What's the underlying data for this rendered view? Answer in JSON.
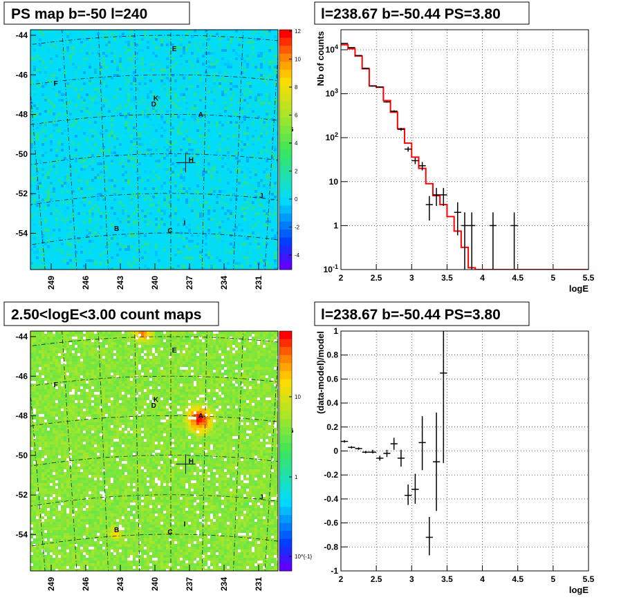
{
  "titles": {
    "map_top": "PS map b=-50 l=240",
    "spectrum": "l=238.67 b=-50.44 PS=3.80",
    "map_bottom": "2.50<logE<3.00 count maps",
    "residual": "l=238.67 b=-50.44 PS=3.80"
  },
  "colors": {
    "model_line": "#ff0000",
    "data_points": "#000000",
    "grid": "#000000"
  },
  "chart_data": [
    {
      "type": "heatmap",
      "title": "PS map b=-50 l=240",
      "x_ticks": [
        "249",
        "246",
        "243",
        "240",
        "237",
        "234",
        "231"
      ],
      "y_ticks": [
        "-44",
        "-46",
        "-48",
        "-50",
        "-52",
        "-54"
      ],
      "colorbar_ticks": [
        "12",
        "10",
        "8",
        "6",
        "4",
        "2",
        "0",
        "-2",
        "-4"
      ],
      "colorbar_range": [
        -5,
        12
      ],
      "markers": [
        {
          "label": "E",
          "l": 239.9,
          "b": -44.8
        },
        {
          "label": "F",
          "l": 250.0,
          "b": -46.2
        },
        {
          "label": "K",
          "l": 241.5,
          "b": -47.3
        },
        {
          "label": "D",
          "l": 241.7,
          "b": -47.6
        },
        {
          "label": "A",
          "l": 237.6,
          "b": -48.1
        },
        {
          "label": "G",
          "l": 229.7,
          "b": -48.5
        },
        {
          "label": "H",
          "l": 238.4,
          "b": -50.4
        },
        {
          "label": "J",
          "l": 231.9,
          "b": -52.0
        },
        {
          "label": "I",
          "l": 238.8,
          "b": -53.6
        },
        {
          "label": "B",
          "l": 245.3,
          "b": -53.8
        },
        {
          "label": "C",
          "l": 240.3,
          "b": -54.0
        }
      ],
      "crosshair": {
        "l": 238.67,
        "b": -50.44
      }
    },
    {
      "type": "line",
      "title": "l=238.67 b=-50.44 PS=3.80",
      "xlabel": "logE",
      "ylabel": "Nb of counts",
      "xlim": [
        2,
        5.5
      ],
      "ylim": [
        0.1,
        30000
      ],
      "yscale": "log",
      "grid": true,
      "x_ticks": [
        "2",
        "2.5",
        "3",
        "3.5",
        "4",
        "4.5",
        "5",
        "5.5"
      ],
      "y_ticks": [
        "10^{-1}",
        "1",
        "10",
        "10^{2}",
        "10^{3}",
        "10^{4}"
      ],
      "model_bins": {
        "edges": [
          2.0,
          2.1,
          2.2,
          2.3,
          2.4,
          2.5,
          2.6,
          2.7,
          2.8,
          2.9,
          3.0,
          3.1,
          3.2,
          3.3,
          3.4,
          3.5,
          3.6,
          3.7,
          3.8,
          3.9,
          4.0,
          4.1,
          4.2,
          4.3,
          4.4,
          4.5,
          4.6,
          4.7,
          4.8,
          4.9,
          5.0,
          5.1,
          5.2,
          5.3,
          5.4,
          5.5
        ],
        "values": [
          13000,
          10500,
          7200,
          3700,
          1500,
          1400,
          700,
          380,
          160,
          75,
          36,
          20,
          9,
          4.8,
          3,
          1.6,
          0.75,
          0.32,
          0.11,
          0.1,
          0.1,
          0.1,
          0.1,
          0.1,
          0.1,
          0.1,
          0.1,
          0.1,
          0.1,
          0.1,
          0.1,
          0.1,
          0.1,
          0.1,
          0.1
        ]
      },
      "data_points": [
        {
          "x": 2.05,
          "y": 14000,
          "ylo": 13900,
          "yhi": 14100
        },
        {
          "x": 2.15,
          "y": 11200,
          "ylo": 11100,
          "yhi": 11300
        },
        {
          "x": 2.25,
          "y": 7400,
          "ylo": 7300,
          "yhi": 7500
        },
        {
          "x": 2.35,
          "y": 3800,
          "ylo": 3740,
          "yhi": 3860
        },
        {
          "x": 2.45,
          "y": 1500,
          "ylo": 1460,
          "yhi": 1540
        },
        {
          "x": 2.55,
          "y": 1420,
          "ylo": 1380,
          "yhi": 1460
        },
        {
          "x": 2.65,
          "y": 650,
          "ylo": 625,
          "yhi": 675
        },
        {
          "x": 2.75,
          "y": 400,
          "ylo": 380,
          "yhi": 420
        },
        {
          "x": 2.85,
          "y": 155,
          "ylo": 143,
          "yhi": 167
        },
        {
          "x": 2.95,
          "y": 55,
          "ylo": 48,
          "yhi": 62
        },
        {
          "x": 3.05,
          "y": 30,
          "ylo": 25,
          "yhi": 35
        },
        {
          "x": 3.15,
          "y": 23,
          "ylo": 18,
          "yhi": 28
        },
        {
          "x": 3.25,
          "y": 3,
          "ylo": 1.3,
          "yhi": 4.7
        },
        {
          "x": 3.35,
          "y": 5,
          "ylo": 2.8,
          "yhi": 7.2
        },
        {
          "x": 3.45,
          "y": 5,
          "ylo": 2.8,
          "yhi": 7.2
        },
        {
          "x": 3.65,
          "y": 2,
          "ylo": 0.6,
          "yhi": 3.4
        },
        {
          "x": 3.75,
          "y": 1,
          "ylo": 0.1,
          "yhi": 2
        },
        {
          "x": 3.85,
          "y": 1,
          "ylo": 0.1,
          "yhi": 2
        },
        {
          "x": 4.15,
          "y": 1,
          "ylo": 0.1,
          "yhi": 2
        },
        {
          "x": 4.45,
          "y": 1,
          "ylo": 0.1,
          "yhi": 2
        }
      ]
    },
    {
      "type": "heatmap",
      "title": "2.50<logE<3.00 count maps",
      "x_ticks": [
        "249",
        "246",
        "243",
        "240",
        "237",
        "234",
        "231"
      ],
      "y_ticks": [
        "-44",
        "-46",
        "-48",
        "-50",
        "-52",
        "-54"
      ],
      "colorbar_ticks": [
        "10",
        "1",
        "10^{-1}"
      ],
      "colorbar_scale": "log",
      "markers": [
        {
          "label": "E",
          "l": 239.9,
          "b": -44.8
        },
        {
          "label": "F",
          "l": 250.0,
          "b": -46.2
        },
        {
          "label": "K",
          "l": 241.5,
          "b": -47.3
        },
        {
          "label": "D",
          "l": 241.7,
          "b": -47.6
        },
        {
          "label": "A",
          "l": 237.6,
          "b": -48.1
        },
        {
          "label": "G",
          "l": 229.7,
          "b": -48.5
        },
        {
          "label": "H",
          "l": 238.4,
          "b": -50.4
        },
        {
          "label": "J",
          "l": 231.9,
          "b": -52.0
        },
        {
          "label": "I",
          "l": 238.8,
          "b": -53.6
        },
        {
          "label": "B",
          "l": 245.3,
          "b": -53.8
        },
        {
          "label": "C",
          "l": 240.3,
          "b": -54.0
        }
      ],
      "crosshair": {
        "l": 238.67,
        "b": -50.44
      }
    },
    {
      "type": "scatter",
      "title": "l=238.67 b=-50.44 PS=3.80",
      "xlabel": "logE",
      "ylabel": "(data-model)/model",
      "xlim": [
        2,
        5.5
      ],
      "ylim": [
        -1,
        1
      ],
      "grid": true,
      "x_ticks": [
        "2",
        "2.5",
        "3",
        "3.5",
        "4",
        "4.5",
        "5",
        "5.5"
      ],
      "y_ticks": [
        "-1",
        "-0.8",
        "-0.6",
        "-0.4",
        "-0.2",
        "0",
        "0.2",
        "0.4",
        "0.6",
        "0.8",
        "1"
      ],
      "points": [
        {
          "x": 2.05,
          "y": 0.08,
          "ylo": 0.07,
          "yhi": 0.09
        },
        {
          "x": 2.15,
          "y": 0.03,
          "ylo": 0.02,
          "yhi": 0.04
        },
        {
          "x": 2.25,
          "y": 0.02,
          "ylo": 0.01,
          "yhi": 0.03
        },
        {
          "x": 2.35,
          "y": -0.01,
          "ylo": -0.02,
          "yhi": 0.0
        },
        {
          "x": 2.45,
          "y": -0.01,
          "ylo": -0.02,
          "yhi": 0.01
        },
        {
          "x": 2.55,
          "y": -0.06,
          "ylo": -0.08,
          "yhi": -0.04
        },
        {
          "x": 2.65,
          "y": -0.02,
          "ylo": -0.05,
          "yhi": 0.01
        },
        {
          "x": 2.75,
          "y": 0.06,
          "ylo": 0.01,
          "yhi": 0.11
        },
        {
          "x": 2.85,
          "y": -0.06,
          "ylo": -0.13,
          "yhi": 0.01
        },
        {
          "x": 2.95,
          "y": -0.37,
          "ylo": -0.45,
          "yhi": -0.28
        },
        {
          "x": 3.05,
          "y": -0.32,
          "ylo": -0.44,
          "yhi": -0.19
        },
        {
          "x": 3.15,
          "y": 0.07,
          "ylo": -0.16,
          "yhi": 0.29
        },
        {
          "x": 3.25,
          "y": -0.72,
          "ylo": -0.87,
          "yhi": -0.55
        },
        {
          "x": 3.35,
          "y": -0.09,
          "ylo": -0.5,
          "yhi": 0.32
        },
        {
          "x": 3.45,
          "y": 0.65,
          "ylo": -0.1,
          "yhi": 1.0
        }
      ]
    }
  ]
}
